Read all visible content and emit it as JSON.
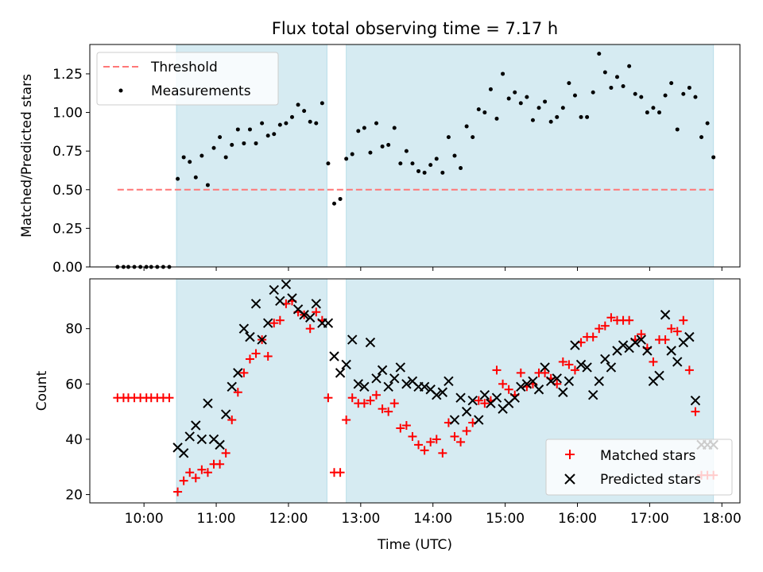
{
  "chart_data": [
    {
      "type": "scatter",
      "title": "Flux total observing time = 7.17 h",
      "xlabel": "",
      "ylabel": "Matched/Predicted stars",
      "xlim": [
        "09:15",
        "18:15"
      ],
      "ylim": [
        0,
        1.44
      ],
      "yticks": [
        "0.00",
        "0.25",
        "0.50",
        "0.75",
        "1.00",
        "1.25"
      ],
      "shaded_intervals": [
        [
          "10:27",
          "12:32"
        ],
        [
          "12:48",
          "17:53"
        ]
      ],
      "legend_position": "upper-left",
      "series": [
        {
          "name": "Threshold",
          "kind": "dashed-line",
          "color": "#ff7777",
          "x": [
            "09:38",
            "17:53"
          ],
          "y": [
            0.5,
            0.5
          ]
        },
        {
          "name": "Measurements",
          "kind": "dot",
          "color": "#000000",
          "x": [
            "09:38",
            "09:43",
            "09:47",
            "09:52",
            "09:57",
            "10:02",
            "10:06",
            "10:11",
            "10:16",
            "10:21",
            "10:28",
            "10:33",
            "10:38",
            "10:43",
            "10:48",
            "10:53",
            "10:58",
            "11:03",
            "11:08",
            "11:13",
            "11:18",
            "11:23",
            "11:28",
            "11:33",
            "11:38",
            "11:43",
            "11:48",
            "11:53",
            "11:58",
            "12:03",
            "12:08",
            "12:13",
            "12:18",
            "12:23",
            "12:28",
            "12:33",
            "12:38",
            "12:43",
            "12:48",
            "12:53",
            "12:58",
            "13:03",
            "13:08",
            "13:13",
            "13:18",
            "13:23",
            "13:28",
            "13:33",
            "13:38",
            "13:43",
            "13:48",
            "13:53",
            "13:58",
            "14:03",
            "14:08",
            "14:13",
            "14:18",
            "14:23",
            "14:28",
            "14:33",
            "14:38",
            "14:43",
            "14:48",
            "14:53",
            "14:58",
            "15:03",
            "15:08",
            "15:13",
            "15:18",
            "15:23",
            "15:28",
            "15:33",
            "15:38",
            "15:43",
            "15:48",
            "15:53",
            "15:58",
            "16:03",
            "16:08",
            "16:13",
            "16:18",
            "16:23",
            "16:28",
            "16:33",
            "16:38",
            "16:43",
            "16:48",
            "16:53",
            "16:58",
            "17:03",
            "17:08",
            "17:13",
            "17:18",
            "17:23",
            "17:28",
            "17:33",
            "17:38",
            "17:43",
            "17:48",
            "17:53"
          ],
          "y": [
            0.0,
            0.0,
            0.0,
            0.0,
            0.0,
            0.0,
            0.0,
            0.0,
            0.0,
            0.0,
            0.57,
            0.71,
            0.68,
            0.58,
            0.72,
            0.53,
            0.77,
            0.84,
            0.71,
            0.79,
            0.89,
            0.8,
            0.89,
            0.8,
            0.93,
            0.85,
            0.86,
            0.92,
            0.93,
            0.97,
            1.05,
            1.01,
            0.94,
            0.93,
            1.06,
            0.67,
            0.41,
            0.44,
            0.7,
            0.73,
            0.88,
            0.9,
            0.74,
            0.93,
            0.78,
            0.79,
            0.9,
            0.67,
            0.75,
            0.67,
            0.62,
            0.61,
            0.66,
            0.7,
            0.61,
            0.84,
            0.72,
            0.64,
            0.91,
            0.84,
            1.02,
            1.0,
            1.15,
            0.96,
            1.25,
            1.09,
            1.13,
            1.06,
            1.1,
            0.95,
            1.03,
            1.07,
            0.94,
            0.97,
            1.03,
            1.19,
            1.11,
            0.97,
            0.97,
            1.13,
            1.38,
            1.26,
            1.16,
            1.23,
            1.17,
            1.3,
            1.12,
            1.1,
            1.0,
            1.03,
            1.0,
            1.11,
            1.19,
            0.89,
            1.12,
            1.16,
            1.1,
            0.84,
            0.93,
            0.71
          ]
        }
      ]
    },
    {
      "type": "scatter",
      "xlabel": "Time (UTC)",
      "ylabel": "Count",
      "xlim": [
        "09:15",
        "18:15"
      ],
      "ylim": [
        17,
        98
      ],
      "yticks": [
        "20",
        "40",
        "60",
        "80"
      ],
      "xticks": [
        "10:00",
        "11:00",
        "12:00",
        "13:00",
        "14:00",
        "15:00",
        "16:00",
        "17:00",
        "18:00"
      ],
      "shaded_intervals": [
        [
          "10:27",
          "12:32"
        ],
        [
          "12:48",
          "17:53"
        ]
      ],
      "legend_position": "lower-right",
      "series": [
        {
          "name": "Matched stars",
          "kind": "plus",
          "color": "#ff0000",
          "x": [
            "09:38",
            "09:43",
            "09:47",
            "09:52",
            "09:57",
            "10:02",
            "10:06",
            "10:11",
            "10:16",
            "10:21",
            "10:28",
            "10:33",
            "10:38",
            "10:43",
            "10:48",
            "10:53",
            "10:58",
            "11:03",
            "11:08",
            "11:13",
            "11:18",
            "11:23",
            "11:28",
            "11:33",
            "11:38",
            "11:43",
            "11:48",
            "11:53",
            "11:58",
            "12:03",
            "12:08",
            "12:13",
            "12:18",
            "12:23",
            "12:28",
            "12:33",
            "12:38",
            "12:43",
            "12:48",
            "12:53",
            "12:58",
            "13:03",
            "13:08",
            "13:13",
            "13:18",
            "13:23",
            "13:28",
            "13:33",
            "13:38",
            "13:43",
            "13:48",
            "13:53",
            "13:58",
            "14:03",
            "14:08",
            "14:13",
            "14:18",
            "14:23",
            "14:28",
            "14:33",
            "14:38",
            "14:43",
            "14:48",
            "14:53",
            "14:58",
            "15:03",
            "15:08",
            "15:13",
            "15:18",
            "15:23",
            "15:28",
            "15:33",
            "15:38",
            "15:43",
            "15:48",
            "15:53",
            "15:58",
            "16:03",
            "16:08",
            "16:13",
            "16:18",
            "16:23",
            "16:28",
            "16:33",
            "16:38",
            "16:43",
            "16:48",
            "16:53",
            "16:58",
            "17:03",
            "17:08",
            "17:13",
            "17:18",
            "17:23",
            "17:28",
            "17:33",
            "17:38",
            "17:43",
            "17:48",
            "17:53"
          ],
          "y": [
            55,
            55,
            55,
            55,
            55,
            55,
            55,
            55,
            55,
            55,
            21,
            25,
            28,
            26,
            29,
            28,
            31,
            31,
            35,
            47,
            57,
            64,
            69,
            71,
            76,
            70,
            82,
            83,
            89,
            90,
            86,
            85,
            80,
            86,
            83,
            55,
            28,
            28,
            47,
            55,
            53,
            53,
            54,
            56,
            51,
            50,
            53,
            44,
            45,
            41,
            38,
            36,
            39,
            40,
            35,
            46,
            41,
            39,
            43,
            46,
            54,
            53,
            54,
            65,
            60,
            58,
            56,
            64,
            59,
            60,
            64,
            64,
            62,
            60,
            68,
            67,
            65,
            75,
            77,
            77,
            80,
            81,
            84,
            83,
            83,
            83,
            76,
            78,
            73,
            68,
            76,
            76,
            80,
            79,
            83,
            65,
            50,
            27,
            27,
            27
          ]
        },
        {
          "name": "Predicted stars",
          "kind": "cross",
          "color": "#000000",
          "x": [
            "10:28",
            "10:33",
            "10:38",
            "10:43",
            "10:48",
            "10:53",
            "10:58",
            "11:03",
            "11:08",
            "11:13",
            "11:18",
            "11:23",
            "11:28",
            "11:33",
            "11:38",
            "11:43",
            "11:48",
            "11:53",
            "11:58",
            "12:03",
            "12:08",
            "12:13",
            "12:18",
            "12:23",
            "12:28",
            "12:33",
            "12:38",
            "12:43",
            "12:48",
            "12:53",
            "12:58",
            "13:03",
            "13:08",
            "13:13",
            "13:18",
            "13:23",
            "13:28",
            "13:33",
            "13:38",
            "13:43",
            "13:48",
            "13:53",
            "13:58",
            "14:03",
            "14:08",
            "14:13",
            "14:18",
            "14:23",
            "14:28",
            "14:33",
            "14:38",
            "14:43",
            "14:48",
            "14:53",
            "14:58",
            "15:03",
            "15:08",
            "15:13",
            "15:18",
            "15:23",
            "15:28",
            "15:33",
            "15:38",
            "15:43",
            "15:48",
            "15:53",
            "15:58",
            "16:03",
            "16:08",
            "16:13",
            "16:18",
            "16:23",
            "16:28",
            "16:33",
            "16:38",
            "16:43",
            "16:48",
            "16:53",
            "16:58",
            "17:03",
            "17:08",
            "17:13",
            "17:18",
            "17:23",
            "17:28",
            "17:33",
            "17:38",
            "17:43",
            "17:48",
            "17:53"
          ],
          "y": [
            37,
            35,
            41,
            45,
            40,
            53,
            40,
            38,
            49,
            59,
            64,
            80,
            77,
            89,
            76,
            82,
            94,
            90,
            96,
            91,
            87,
            85,
            84,
            89,
            82,
            82,
            70,
            64,
            67,
            76,
            60,
            59,
            75,
            62,
            65,
            59,
            62,
            66,
            60,
            61,
            59,
            59,
            58,
            56,
            57,
            61,
            47,
            55,
            50,
            54,
            47,
            56,
            53,
            55,
            51,
            53,
            55,
            59,
            60,
            61,
            58,
            66,
            61,
            62,
            57,
            61,
            74,
            67,
            66,
            56,
            61,
            69,
            66,
            72,
            74,
            73,
            75,
            76,
            72,
            61,
            63,
            85,
            72,
            68,
            75,
            77,
            54,
            38,
            38,
            38
          ]
        }
      ]
    }
  ]
}
